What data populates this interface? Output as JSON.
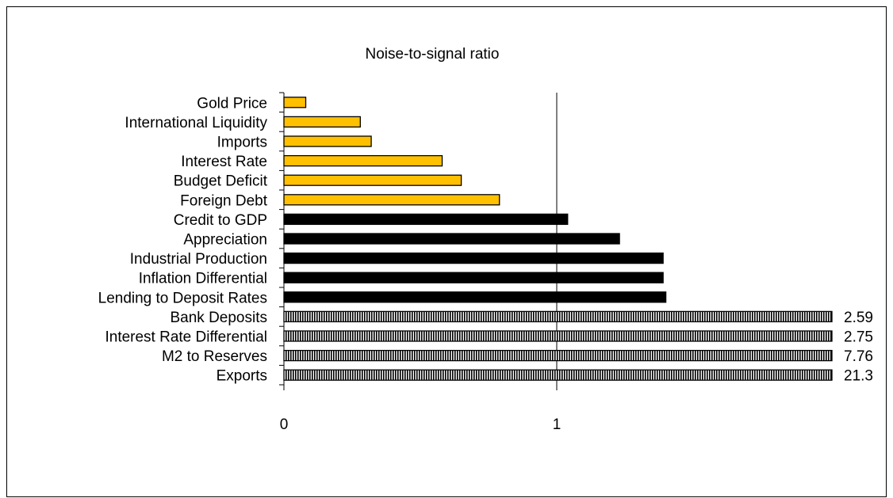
{
  "chart_data": {
    "type": "bar",
    "orientation": "horizontal",
    "title": "Noise-to-signal ratio",
    "xlabel": "",
    "ylabel": "",
    "xlim": [
      0,
      2
    ],
    "x_ticks": [
      "0",
      "1"
    ],
    "grid": false,
    "reference_line_at": 1,
    "categories": [
      "Gold Price",
      "International Liquidity",
      "Imports",
      "Interest Rate",
      "Budget Deficit",
      "Foreign Debt",
      "Credit to GDP",
      "Appreciation",
      "Industrial Production",
      "Inflation Differential",
      "Lending to Deposit Rates",
      "Bank Deposits",
      "Interest Rate Differential",
      "M2 to Reserves",
      "Exports"
    ],
    "values": [
      0.08,
      0.28,
      0.32,
      0.58,
      0.65,
      0.79,
      1.04,
      1.23,
      1.39,
      1.39,
      1.4,
      2.59,
      2.75,
      7.76,
      21.3
    ],
    "value_labels": [
      "",
      "",
      "",
      "",
      "",
      "",
      "",
      "",
      "",
      "",
      "",
      "2.59",
      "2.75",
      "7.76",
      "21.3"
    ],
    "bar_styles": [
      "gold",
      "gold",
      "gold",
      "gold",
      "gold",
      "gold",
      "black",
      "black",
      "black",
      "black",
      "black",
      "hatched",
      "hatched",
      "hatched",
      "hatched"
    ],
    "colors": {
      "gold": "#FFC000",
      "black": "#000000",
      "hatched": "#000000",
      "reference_line": "#000000"
    }
  }
}
